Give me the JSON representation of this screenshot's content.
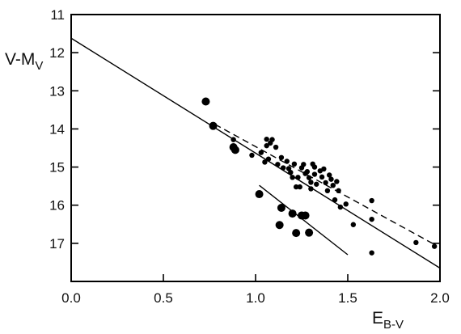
{
  "chart_data": {
    "type": "scatter",
    "title": "",
    "xlabel": {
      "main": "E",
      "sub": "B-V"
    },
    "ylabel": {
      "main": "V-M",
      "sub": "V"
    },
    "xlim": [
      0.0,
      2.0
    ],
    "ylim": [
      11,
      18
    ],
    "y_inverted": true,
    "grid": false,
    "legend": "none",
    "x_ticks": [
      0.0,
      0.5,
      1.0,
      1.5,
      2.0
    ],
    "x_tick_labels": [
      "0.0",
      "0.5",
      "1.0",
      "1.5",
      "2.0"
    ],
    "y_ticks": [
      11,
      12,
      13,
      14,
      15,
      16,
      17
    ],
    "y_tick_labels": [
      "11",
      "12",
      "13",
      "14",
      "15",
      "16",
      "17"
    ],
    "series": [
      {
        "marker": "large-dot",
        "points": [
          [
            0.73,
            13.28
          ],
          [
            0.77,
            13.92
          ],
          [
            0.88,
            14.48
          ],
          [
            0.89,
            14.55
          ],
          [
            1.02,
            15.71
          ],
          [
            1.14,
            16.07
          ],
          [
            1.13,
            16.52
          ],
          [
            1.2,
            16.22
          ],
          [
            1.22,
            16.73
          ],
          [
            1.25,
            16.27
          ],
          [
            1.27,
            16.27
          ],
          [
            1.29,
            16.72
          ]
        ]
      },
      {
        "marker": "small-dot",
        "points": [
          [
            0.88,
            14.28
          ],
          [
            0.98,
            14.69
          ],
          [
            1.03,
            14.62
          ],
          [
            1.05,
            14.87
          ],
          [
            1.06,
            14.27
          ],
          [
            1.06,
            14.44
          ],
          [
            1.07,
            14.79
          ],
          [
            1.08,
            14.37
          ],
          [
            1.09,
            14.28
          ],
          [
            1.11,
            14.48
          ],
          [
            1.12,
            14.93
          ],
          [
            1.14,
            14.75
          ],
          [
            1.15,
            15.02
          ],
          [
            1.17,
            14.85
          ],
          [
            1.18,
            15.04
          ],
          [
            1.19,
            15.14
          ],
          [
            1.2,
            15.27
          ],
          [
            1.21,
            14.92
          ],
          [
            1.22,
            15.52
          ],
          [
            1.23,
            15.27
          ],
          [
            1.24,
            15.52
          ],
          [
            1.25,
            15.02
          ],
          [
            1.26,
            14.93
          ],
          [
            1.27,
            15.17
          ],
          [
            1.28,
            15.12
          ],
          [
            1.29,
            15.28
          ],
          [
            1.3,
            15.4
          ],
          [
            1.3,
            15.57
          ],
          [
            1.31,
            14.92
          ],
          [
            1.32,
            15.0
          ],
          [
            1.32,
            15.19
          ],
          [
            1.33,
            15.45
          ],
          [
            1.35,
            15.1
          ],
          [
            1.36,
            15.26
          ],
          [
            1.37,
            15.05
          ],
          [
            1.38,
            15.41
          ],
          [
            1.39,
            15.62
          ],
          [
            1.4,
            15.21
          ],
          [
            1.41,
            15.32
          ],
          [
            1.42,
            15.48
          ],
          [
            1.43,
            15.86
          ],
          [
            1.44,
            15.38
          ],
          [
            1.45,
            15.62
          ],
          [
            1.46,
            16.05
          ],
          [
            1.49,
            15.97
          ],
          [
            1.53,
            16.51
          ],
          [
            1.63,
            15.88
          ],
          [
            1.63,
            16.37
          ],
          [
            1.63,
            17.25
          ],
          [
            1.87,
            16.98
          ],
          [
            1.97,
            17.08
          ]
        ]
      },
      {
        "kind": "line",
        "style": "solid",
        "points": [
          [
            0.0,
            11.62
          ],
          [
            2.0,
            17.65
          ]
        ]
      },
      {
        "kind": "line",
        "style": "dashed",
        "points": [
          [
            0.78,
            13.88
          ],
          [
            1.97,
            17.03
          ]
        ]
      },
      {
        "kind": "line",
        "style": "solid",
        "points": [
          [
            1.02,
            15.48
          ],
          [
            1.5,
            17.3
          ]
        ]
      }
    ]
  }
}
